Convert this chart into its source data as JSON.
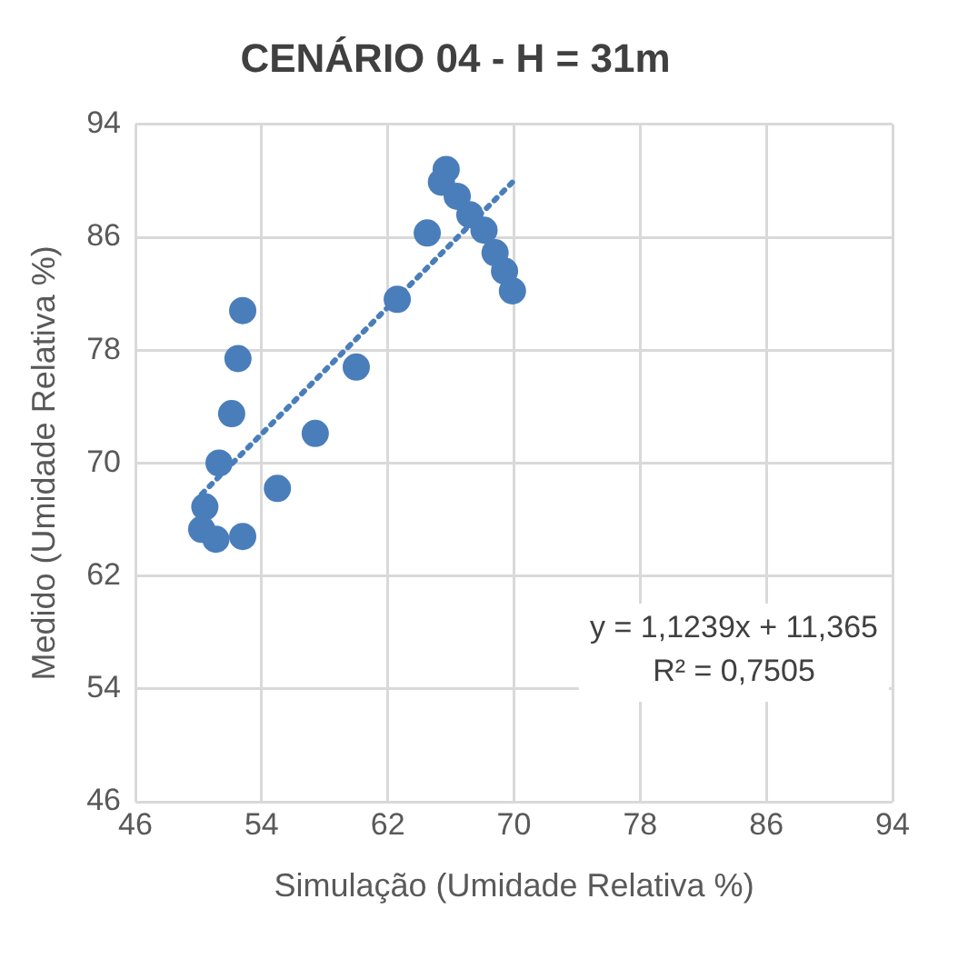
{
  "chart_data": {
    "type": "scatter",
    "title": "CENÁRIO 04 - H = 31m",
    "xlabel": "Simulação (Umidade Relativa %)",
    "ylabel": "Medido (Umidade Relativa %)",
    "xlim": [
      46,
      94
    ],
    "xticks": [
      46,
      54,
      62,
      70,
      78,
      86,
      94
    ],
    "ylim": [
      46,
      94
    ],
    "yticks": [
      46,
      54,
      62,
      70,
      78,
      86,
      94
    ],
    "grid": true,
    "marker": "circle",
    "series": [
      {
        "type": "scatter",
        "color": "#4a7ebb",
        "x": [
          52.8,
          52.5,
          52.1,
          51.3,
          50.4,
          50.2,
          51.1,
          52.8,
          55.0,
          57.4,
          60.0,
          62.6,
          64.5,
          65.7,
          65.4,
          66.4,
          67.2,
          68.1,
          68.8,
          69.4,
          69.9
        ],
        "values": [
          80.8,
          77.4,
          73.5,
          70.0,
          66.9,
          65.3,
          64.6,
          64.8,
          68.2,
          72.1,
          76.8,
          81.6,
          86.3,
          90.8,
          89.9,
          88.9,
          87.6,
          86.5,
          84.9,
          83.6,
          82.2
        ]
      },
      {
        "type": "line",
        "color": "#4a7ebb",
        "line_style": "dotted",
        "marker": "none",
        "x": [
          50.2,
          69.9
        ],
        "values": [
          67.8,
          89.9
        ]
      }
    ],
    "annotations": [
      "y = 1,1239x + 11,365",
      "R² = 0,7505"
    ]
  }
}
